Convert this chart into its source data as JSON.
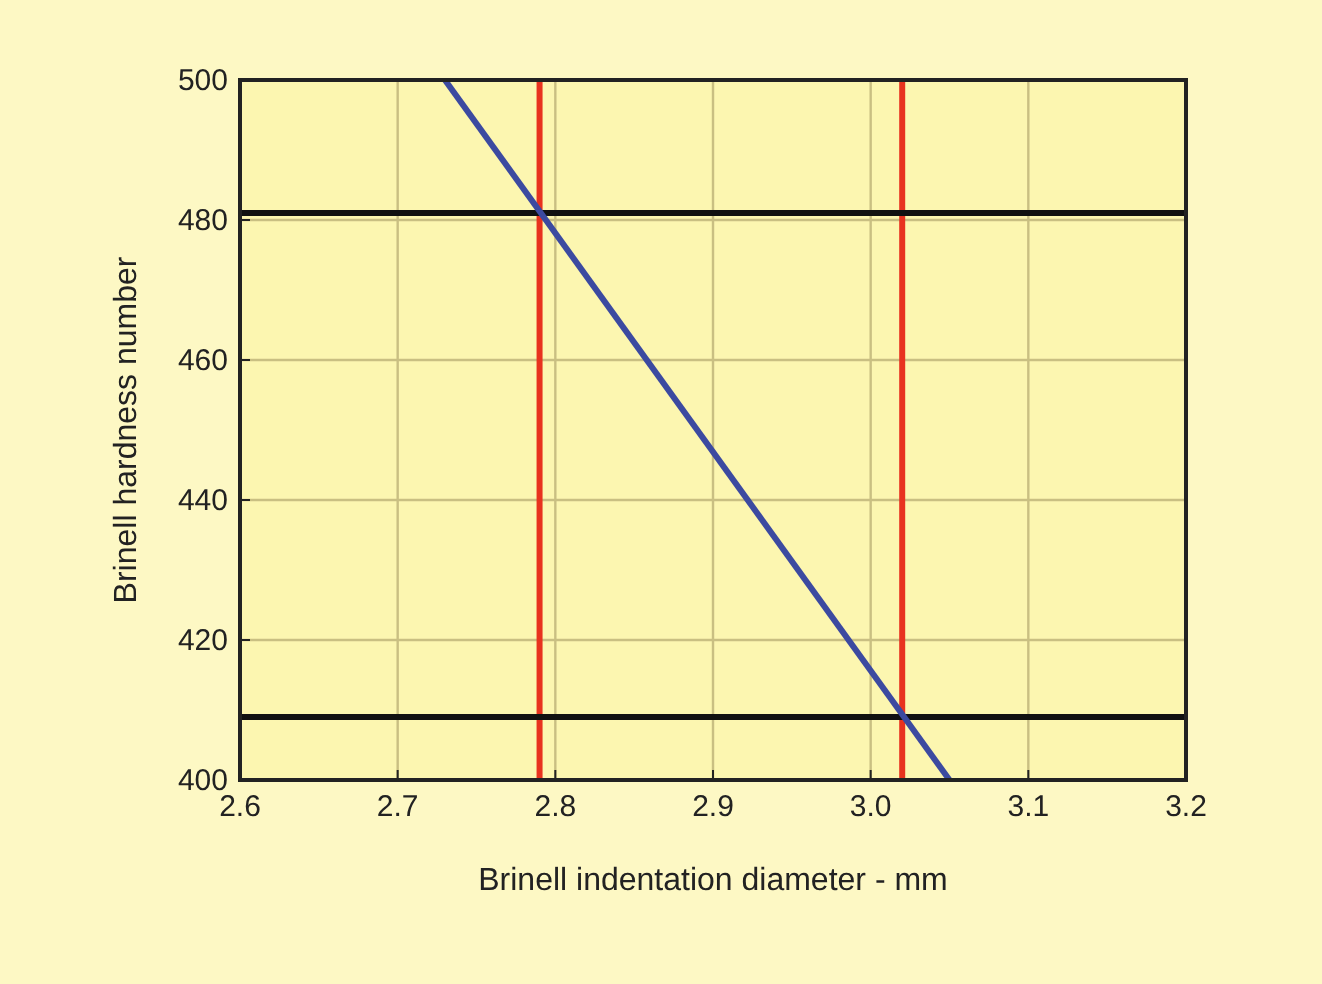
{
  "chart_data": {
    "type": "line",
    "xlabel": "Brinell indentation diameter - mm",
    "ylabel": "Brinell hardness number",
    "series": [
      {
        "color": "#3c4aa0",
        "x": [
          2.73,
          3.05
        ],
        "values": [
          500,
          400
        ]
      }
    ],
    "xlim": [
      2.6,
      3.2
    ],
    "xticks": [
      {
        "value": 2.6,
        "label": "2.6"
      },
      {
        "value": 2.7,
        "label": "2.7"
      },
      {
        "value": 2.8,
        "label": "2.8"
      },
      {
        "value": 2.9,
        "label": "2.9"
      },
      {
        "value": 3.0,
        "label": "3.0"
      },
      {
        "value": 3.1,
        "label": "3.1"
      },
      {
        "value": 3.2,
        "label": "3.2"
      }
    ],
    "ylim": [
      400,
      500
    ],
    "yticks": [
      400,
      420,
      440,
      460,
      480,
      500
    ],
    "ref_lines": [
      {
        "axis": "x",
        "value": 2.79,
        "color": "#e8321e"
      },
      {
        "axis": "x",
        "value": 3.02,
        "color": "#e8321e"
      },
      {
        "axis": "y",
        "value": 481,
        "color": "#111111"
      },
      {
        "axis": "y",
        "value": 409,
        "color": "#111111"
      }
    ],
    "grid": true,
    "marker": "none",
    "line_style": "solid"
  }
}
